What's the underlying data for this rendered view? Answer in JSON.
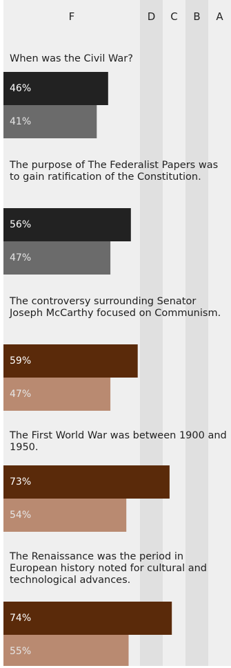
{
  "chart_data": {
    "type": "bar",
    "orientation": "horizontal",
    "grade_labels": [
      "F",
      "D",
      "C",
      "B",
      "A"
    ],
    "grade_boundaries": [
      0,
      60,
      70,
      80,
      90,
      100
    ],
    "xlim": [
      0,
      100
    ],
    "items": [
      {
        "question": "When was the Civil War?",
        "values": [
          46,
          41
        ],
        "labels": [
          "46%",
          "41%"
        ],
        "colors": [
          "#222222",
          "#6b6b6b"
        ]
      },
      {
        "question": "The purpose of The Federalist Papers was to gain ratification of the Constitution.",
        "values": [
          56,
          47
        ],
        "labels": [
          "56%",
          "47%"
        ],
        "colors": [
          "#222222",
          "#6b6b6b"
        ]
      },
      {
        "question": "The controversy surrounding Senator Joseph McCarthy focused on Communism.",
        "values": [
          59,
          47
        ],
        "labels": [
          "59%",
          "47%"
        ],
        "colors": [
          "#5a2a0a",
          "#b98a71"
        ]
      },
      {
        "question": "The First World War was between 1900 and 1950.",
        "values": [
          73,
          54
        ],
        "labels": [
          "73%",
          "54%"
        ],
        "colors": [
          "#5a2a0a",
          "#b98a71"
        ]
      },
      {
        "question": "The Renaissance was the period in European history noted for cultural and technological advances.",
        "values": [
          74,
          55
        ],
        "labels": [
          "74%",
          "55%"
        ],
        "colors": [
          "#5a2a0a",
          "#b98a71"
        ]
      }
    ],
    "band_colors": [
      "#efefef",
      "#e0e0e0",
      "#efefef",
      "#e0e0e0",
      "#efefef"
    ],
    "label_colors": [
      "#ffffff",
      "#e6e6e6"
    ]
  }
}
